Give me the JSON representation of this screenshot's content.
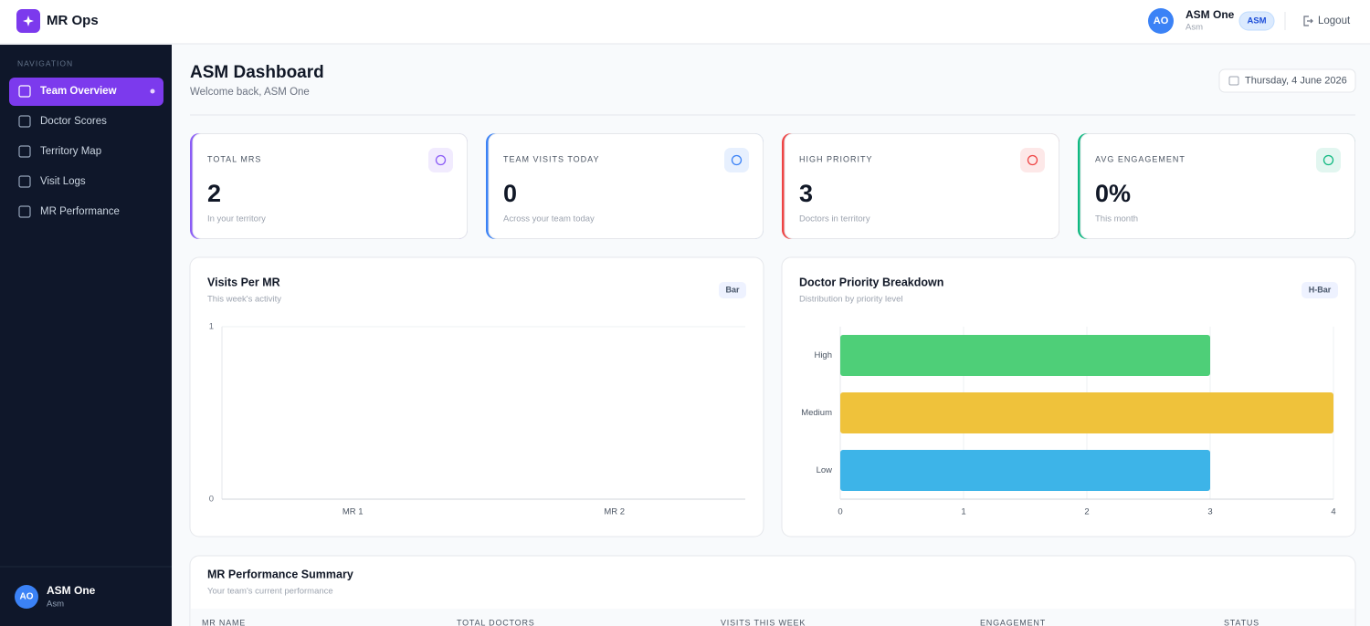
{
  "header": {
    "brand": "MR Ops",
    "user_initials": "AO",
    "user_name": "ASM One",
    "user_role": "Asm",
    "role_badge": "ASM",
    "logout": "Logout"
  },
  "sidebar": {
    "section": "NAVIGATION",
    "items": [
      "Team Overview",
      "Doctor Scores",
      "Territory Map",
      "Visit Logs",
      "MR Performance"
    ],
    "user_initials": "AO",
    "user_name": "ASM One",
    "user_role": "Asm"
  },
  "page": {
    "title": "ASM Dashboard",
    "subtitle": "Welcome back, ASM One",
    "date": "Thursday, 4 June 2026"
  },
  "stats": [
    {
      "label": "TOTAL MRS",
      "value": "2",
      "note": "In your territory",
      "color": "#8b5cf6"
    },
    {
      "label": "TEAM VISITS TODAY",
      "value": "0",
      "note": "Across your team today",
      "color": "#3b82f6"
    },
    {
      "label": "HIGH PRIORITY",
      "value": "3",
      "note": "Doctors in territory",
      "color": "#ef4444"
    },
    {
      "label": "AVG ENGAGEMENT",
      "value": "0%",
      "note": "This month",
      "color": "#10b981"
    }
  ],
  "chart_data": [
    {
      "type": "bar",
      "title": "Visits Per MR",
      "subtitle": "This week's activity",
      "badge": "Bar",
      "categories": [
        "MR 1",
        "MR 2"
      ],
      "values": [
        0,
        0
      ],
      "color": "#8b5cf6",
      "ylim": [
        0,
        1
      ],
      "yticks": [
        0,
        1
      ],
      "grid": true
    },
    {
      "type": "hbar",
      "title": "Doctor Priority Breakdown",
      "subtitle": "Distribution by priority level",
      "badge": "H-Bar",
      "categories": [
        "High",
        "Medium",
        "Low"
      ],
      "values": [
        3,
        4,
        3
      ],
      "colors": [
        "#4ecf78",
        "#efc23b",
        "#3db4e8"
      ],
      "xlim": [
        0,
        4
      ],
      "xticks": [
        0,
        1,
        2,
        3,
        4
      ],
      "grid": true
    }
  ],
  "table": {
    "title": "MR Performance Summary",
    "subtitle": "Your team's current performance",
    "columns": [
      "MR NAME",
      "TOTAL DOCTORS",
      "VISITS THIS WEEK",
      "ENGAGEMENT",
      "STATUS"
    ]
  }
}
